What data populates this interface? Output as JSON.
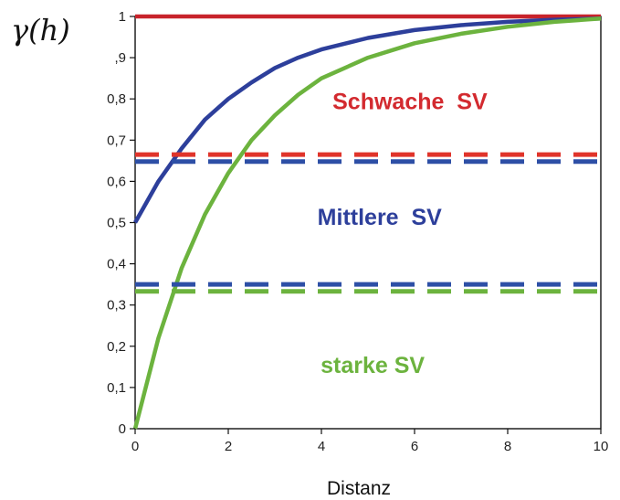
{
  "chart_data": {
    "type": "line",
    "title": "",
    "xlabel": "Distanz",
    "ylabel": "γ(h)",
    "xlim": [
      0,
      10
    ],
    "ylim": [
      0,
      1
    ],
    "x_ticks": [
      "0",
      "2",
      "4",
      "6",
      "8",
      "10"
    ],
    "y_ticks": [
      "0",
      "0,1",
      "0,2",
      "0,3",
      "0,4",
      "0,5",
      "0,6",
      "0,7",
      "0,8",
      ",9",
      "1"
    ],
    "grid": false,
    "series": [
      {
        "color": "#c8232b",
        "style": "solid",
        "x": [
          0,
          10
        ],
        "y": [
          1,
          1
        ]
      },
      {
        "color": "#2d3f9b",
        "style": "solid",
        "x": [
          0,
          0.5,
          1,
          1.5,
          2,
          2.5,
          3,
          3.5,
          4,
          5,
          6,
          7,
          8,
          9,
          10
        ],
        "y": [
          0.5,
          0.6,
          0.68,
          0.75,
          0.8,
          0.84,
          0.875,
          0.9,
          0.92,
          0.948,
          0.967,
          0.979,
          0.987,
          0.992,
          0.995
        ]
      },
      {
        "color": "#6cb33e",
        "style": "solid",
        "x": [
          0,
          0.5,
          1,
          1.5,
          2,
          2.5,
          3,
          3.5,
          4,
          5,
          6,
          7,
          8,
          9,
          10
        ],
        "y": [
          0.0,
          0.22,
          0.39,
          0.52,
          0.62,
          0.7,
          0.76,
          0.81,
          0.85,
          0.9,
          0.935,
          0.958,
          0.975,
          0.987,
          0.995
        ]
      },
      {
        "color": "#e0342a",
        "style": "dashed",
        "x": [
          0,
          10
        ],
        "y": [
          0.665,
          0.665
        ]
      },
      {
        "color": "#2d4fa6",
        "style": "dashed",
        "x": [
          0,
          10
        ],
        "y": [
          0.648,
          0.648
        ]
      },
      {
        "color": "#2d4fa6",
        "style": "dashed",
        "x": [
          0,
          10
        ],
        "y": [
          0.35,
          0.35
        ]
      },
      {
        "color": "#6cb33e",
        "style": "dashed",
        "x": [
          0,
          10
        ],
        "y": [
          0.333,
          0.333
        ]
      }
    ],
    "annotations": [
      {
        "text": "Schwache  SV",
        "x": 5.9,
        "y": 0.775,
        "color": "#d32a2f"
      },
      {
        "text": "Mittlere  SV",
        "x": 5.25,
        "y": 0.495,
        "color": "#2d3f9b"
      },
      {
        "text": "starke SV",
        "x": 5.1,
        "y": 0.135,
        "color": "#6cb33e"
      }
    ]
  }
}
